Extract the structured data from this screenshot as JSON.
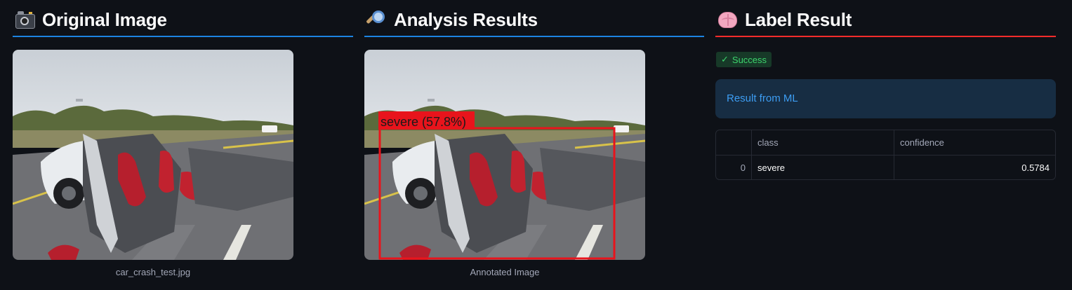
{
  "colors": {
    "background": "#0e1117",
    "col1_rule": "#1c83e1",
    "col2_rule": "#1c83e1",
    "col3_rule": "#ff2b2b",
    "success_bg": "#173928",
    "success_text": "#3dd56d",
    "info_bg": "#172d43",
    "info_text": "#3d9df3",
    "detection_box": "#e8141c"
  },
  "columns": [
    {
      "title": "Original Image",
      "icon": "camera-icon",
      "caption": "car_crash_test.jpg"
    },
    {
      "title": "Analysis Results",
      "icon": "magnifier-icon",
      "caption": "Annotated Image",
      "detection_label": "severe (57.8%)"
    },
    {
      "title": "Label Result",
      "icon": "brain-icon",
      "status_badge": "Success",
      "info_text": "Result from ML",
      "table": {
        "columns": [
          "",
          "class",
          "confidence"
        ],
        "rows": [
          [
            "0",
            "severe",
            "0.5784"
          ]
        ]
      }
    }
  ]
}
